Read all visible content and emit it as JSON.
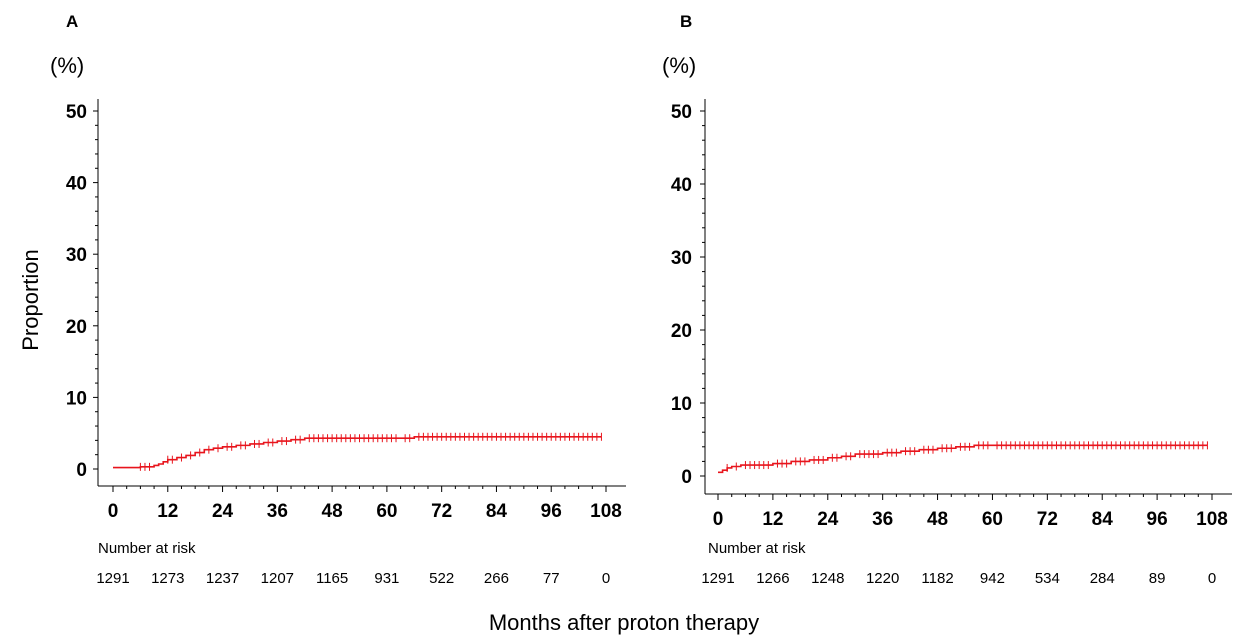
{
  "chart_data": [
    {
      "type": "line",
      "panel_label": "A",
      "unit_label": "(%)",
      "ylabel": "Proportion",
      "xlabel": "Months after proton therapy",
      "xlim": [
        0,
        108
      ],
      "ylim": [
        0,
        50
      ],
      "x_ticks": [
        0,
        12,
        24,
        36,
        48,
        60,
        72,
        84,
        96,
        108
      ],
      "y_ticks": [
        0,
        10,
        20,
        30,
        40,
        50
      ],
      "line_color": "#e8141c",
      "grid": false,
      "series": [
        {
          "x": [
            0,
            6,
            9,
            10,
            11,
            12,
            14,
            16,
            18,
            20,
            22,
            24,
            27,
            30,
            33,
            36,
            39,
            42,
            63,
            66,
            107
          ],
          "y": [
            0.2,
            0.3,
            0.5,
            0.7,
            1.0,
            1.3,
            1.6,
            1.9,
            2.3,
            2.7,
            2.9,
            3.1,
            3.3,
            3.5,
            3.7,
            3.9,
            4.1,
            4.3,
            4.3,
            4.5,
            4.5
          ]
        }
      ],
      "censor_x": [
        6,
        7,
        8,
        12,
        13,
        15,
        17,
        19,
        21,
        23,
        25,
        26,
        28,
        29,
        31,
        32,
        34,
        35,
        37,
        38,
        40,
        41,
        43,
        44,
        45,
        46,
        47,
        48,
        49,
        50,
        51,
        52,
        53,
        54,
        55,
        56,
        57,
        58,
        59,
        60,
        61,
        62,
        64,
        65,
        67,
        68,
        69,
        70,
        71,
        72,
        73,
        74,
        75,
        76,
        77,
        78,
        79,
        80,
        81,
        82,
        83,
        84,
        85,
        86,
        87,
        88,
        89,
        90,
        91,
        92,
        93,
        94,
        95,
        96,
        97,
        98,
        99,
        100,
        101,
        102,
        103,
        104,
        105,
        106,
        107
      ],
      "number_at_risk": {
        "title": "Number at risk",
        "values": [
          "1291",
          "1273",
          "1237",
          "1207",
          "1165",
          "931",
          "522",
          "266",
          "77",
          "0"
        ]
      }
    },
    {
      "type": "line",
      "panel_label": "B",
      "unit_label": "(%)",
      "ylabel": "",
      "xlabel": "",
      "xlim": [
        0,
        108
      ],
      "ylim": [
        0,
        50
      ],
      "x_ticks": [
        0,
        12,
        24,
        36,
        48,
        60,
        72,
        84,
        96,
        108
      ],
      "y_ticks": [
        0,
        10,
        20,
        30,
        40,
        50
      ],
      "line_color": "#e8141c",
      "grid": false,
      "series": [
        {
          "x": [
            0,
            1,
            2,
            3,
            5,
            12,
            16,
            20,
            24,
            27,
            30,
            36,
            40,
            44,
            48,
            52,
            56,
            60,
            107
          ],
          "y": [
            0.5,
            0.8,
            1.1,
            1.3,
            1.5,
            1.7,
            2.0,
            2.2,
            2.5,
            2.7,
            3.0,
            3.2,
            3.4,
            3.6,
            3.8,
            4.0,
            4.2,
            4.2,
            4.2
          ]
        }
      ],
      "censor_x": [
        2,
        4,
        6,
        7,
        8,
        9,
        10,
        11,
        13,
        14,
        15,
        17,
        18,
        19,
        21,
        22,
        23,
        25,
        26,
        28,
        29,
        31,
        32,
        33,
        34,
        35,
        37,
        38,
        39,
        41,
        42,
        43,
        45,
        46,
        47,
        49,
        50,
        51,
        53,
        54,
        55,
        57,
        58,
        59,
        61,
        62,
        63,
        64,
        65,
        66,
        67,
        68,
        69,
        70,
        71,
        72,
        73,
        74,
        75,
        76,
        77,
        78,
        79,
        80,
        81,
        82,
        83,
        84,
        85,
        86,
        87,
        88,
        89,
        90,
        91,
        92,
        93,
        94,
        95,
        96,
        97,
        98,
        99,
        100,
        101,
        102,
        103,
        104,
        105,
        106,
        107
      ],
      "number_at_risk": {
        "title": "Number at risk",
        "values": [
          "1291",
          "1266",
          "1248",
          "1220",
          "1182",
          "942",
          "534",
          "284",
          "89",
          "0"
        ]
      }
    }
  ]
}
